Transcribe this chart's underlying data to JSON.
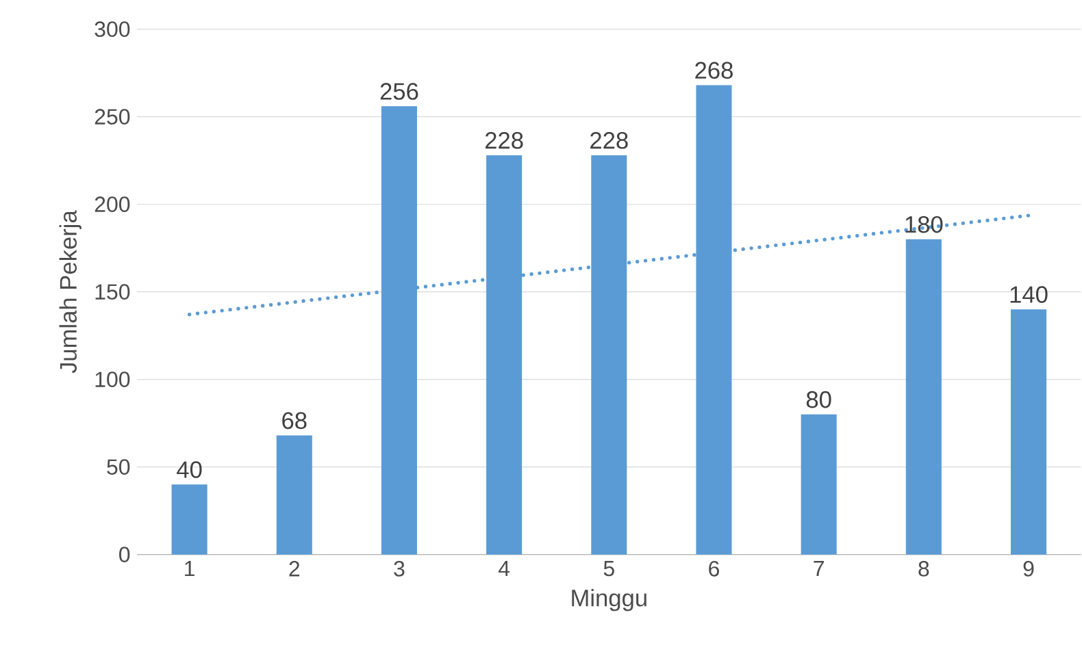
{
  "chart_data": {
    "type": "bar",
    "xlabel": "Minggu",
    "ylabel": "Jumlah Pekerja",
    "x": [
      1,
      2,
      3,
      4,
      5,
      6,
      7,
      8,
      9
    ],
    "series": [
      {
        "color": "#5b9bd5",
        "values": [
          40,
          68,
          256,
          228,
          228,
          268,
          80,
          180,
          140
        ],
        "value_labels": [
          "40",
          "68",
          "256",
          "228",
          "228",
          "268",
          "80",
          "180",
          "140"
        ]
      },
      {
        "type": "line",
        "x": [
          1,
          9
        ],
        "color": "#5b9bd5",
        "line_style": "dotted",
        "values": [
          137.1,
          193.6
        ]
      }
    ],
    "xlim": [
      0.5,
      9.5
    ],
    "xticks": [
      1,
      2,
      3,
      4,
      5,
      6,
      7,
      8,
      9
    ],
    "ylim": [
      0,
      300
    ],
    "yticks": [
      0,
      50,
      100,
      150,
      200,
      250,
      300
    ],
    "grid": "y"
  }
}
